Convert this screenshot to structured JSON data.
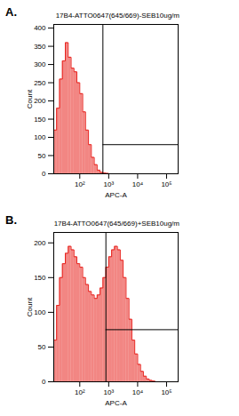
{
  "chart_data": [
    {
      "type": "histogram",
      "panel_label": "A.",
      "title": "17B4-ATTO0647(645/669)-SEB10ug/m",
      "x_label": "APC-A",
      "y_label": "Count",
      "log": "x",
      "color": "#e8231e",
      "bins": [
        12.6,
        15.8,
        20.0,
        25.1,
        31.6,
        39.8,
        50.1,
        63.1,
        79.4,
        100,
        126,
        158,
        200,
        251,
        316,
        398,
        501,
        631,
        794,
        1000,
        1260,
        1580,
        2000,
        2510,
        3160,
        3980,
        5010,
        6310,
        7940,
        10000,
        12600,
        15800,
        20000,
        25100,
        31600,
        39800,
        50100,
        63100,
        79400,
        100000,
        126000,
        158000,
        200000,
        251000
      ],
      "counts": [
        120,
        180,
        260,
        310,
        360,
        320,
        290,
        280,
        250,
        220,
        170,
        120,
        80,
        45,
        25,
        10,
        4,
        2,
        1,
        0,
        0,
        0,
        0,
        0,
        0,
        0,
        0,
        0,
        0,
        0,
        0,
        0,
        0,
        0,
        0,
        0,
        0,
        0,
        0,
        0,
        0,
        0,
        0
      ],
      "xlim": [
        12.6,
        251000
      ],
      "xticks": [
        {
          "value": 100,
          "label": "10²"
        },
        {
          "value": 1000,
          "label": "10³"
        },
        {
          "value": 10000,
          "label": "10⁴"
        },
        {
          "value": 100000,
          "label": "10⁵"
        }
      ],
      "ylim": [
        0,
        410
      ],
      "yticks": [
        0,
        50,
        100,
        150,
        200,
        250,
        300,
        350,
        400
      ],
      "gate_x": 630,
      "gate_y": 80
    },
    {
      "type": "histogram",
      "panel_label": "B.",
      "title": "17B4-ATTO0647(645/669)+SEB10ug/m",
      "x_label": "APC-A",
      "y_label": "Count",
      "log": "x",
      "color": "#e8231e",
      "bins": [
        12.6,
        15.8,
        20.0,
        25.1,
        31.6,
        39.8,
        50.1,
        63.1,
        79.4,
        100,
        126,
        158,
        200,
        251,
        316,
        398,
        501,
        631,
        794,
        1000,
        1260,
        1580,
        2000,
        2510,
        3160,
        3980,
        5010,
        6310,
        7940,
        10000,
        12600,
        15800,
        20000,
        25100,
        31600,
        39800,
        50100,
        63100,
        79400,
        100000,
        126000,
        158000,
        200000,
        251000
      ],
      "counts": [
        60,
        110,
        150,
        170,
        185,
        195,
        190,
        180,
        170,
        165,
        150,
        140,
        130,
        125,
        120,
        125,
        135,
        150,
        165,
        180,
        190,
        195,
        190,
        175,
        150,
        120,
        90,
        60,
        40,
        25,
        15,
        8,
        4,
        2,
        1,
        0,
        0,
        0,
        0,
        0,
        0,
        0,
        0
      ],
      "xlim": [
        12.6,
        251000
      ],
      "xticks": [
        {
          "value": 100,
          "label": "10²"
        },
        {
          "value": 1000,
          "label": "10³"
        },
        {
          "value": 10000,
          "label": "10⁴"
        },
        {
          "value": 100000,
          "label": "10⁵"
        }
      ],
      "ylim": [
        0,
        215
      ],
      "yticks": [
        0,
        50,
        100,
        150,
        200
      ],
      "gate_x": 800,
      "gate_y": 75
    }
  ]
}
